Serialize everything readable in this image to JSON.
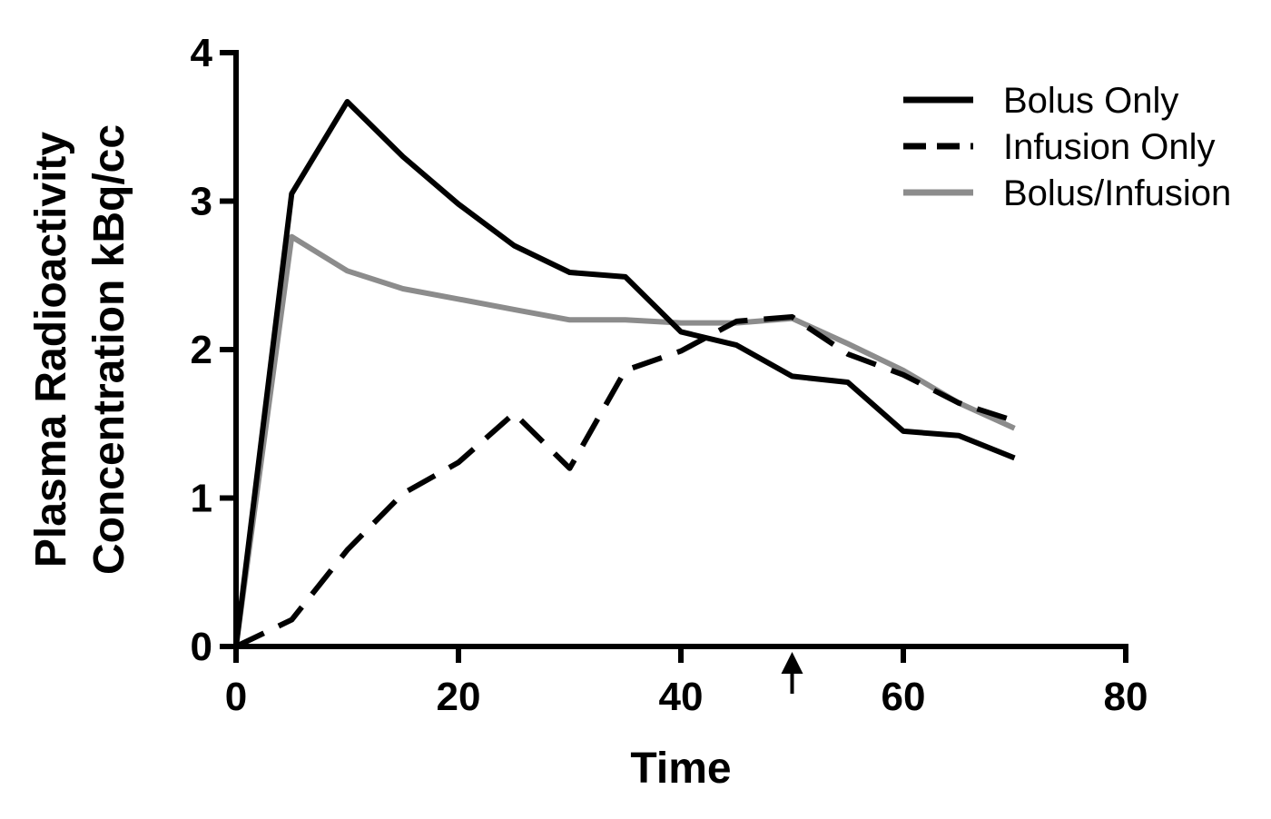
{
  "chart_data": {
    "type": "line",
    "title": "",
    "xlabel": "Time",
    "ylabel_lines": [
      "Plasma Radioactivity",
      "Concentration kBq/cc"
    ],
    "xlim": [
      0,
      80
    ],
    "ylim": [
      0,
      4
    ],
    "xticks": [
      0,
      20,
      40,
      60,
      80
    ],
    "yticks": [
      0,
      1,
      2,
      3,
      4
    ],
    "grid": false,
    "legend_position": "top-right",
    "annotation": {
      "type": "arrow",
      "x": 50,
      "direction": "up",
      "label": ""
    },
    "series": [
      {
        "name": "Bolus Only",
        "style": "solid",
        "color": "#000000",
        "x": [
          0,
          5,
          10,
          15,
          20,
          25,
          30,
          35,
          40,
          45,
          50,
          55,
          60,
          65,
          70
        ],
        "values": [
          0,
          3.05,
          3.67,
          3.3,
          2.98,
          2.7,
          2.52,
          2.49,
          2.12,
          2.03,
          1.82,
          1.78,
          1.45,
          1.42,
          1.27
        ]
      },
      {
        "name": "Infusion Only",
        "style": "dashed",
        "color": "#000000",
        "x": [
          0,
          5,
          10,
          15,
          20,
          25,
          30,
          35,
          40,
          45,
          50,
          55,
          60,
          65,
          70
        ],
        "values": [
          0,
          0.18,
          0.65,
          1.03,
          1.24,
          1.57,
          1.2,
          1.86,
          1.99,
          2.19,
          2.22,
          1.97,
          1.83,
          1.64,
          1.52
        ]
      },
      {
        "name": "Bolus/Infusion",
        "style": "solid",
        "color": "#8c8c8c",
        "x": [
          0,
          5,
          10,
          15,
          20,
          25,
          30,
          35,
          40,
          45,
          50,
          55,
          60,
          65,
          70
        ],
        "values": [
          0,
          2.76,
          2.53,
          2.41,
          2.34,
          2.27,
          2.2,
          2.2,
          2.18,
          2.18,
          2.21,
          2.04,
          1.86,
          1.64,
          1.47
        ]
      }
    ]
  }
}
